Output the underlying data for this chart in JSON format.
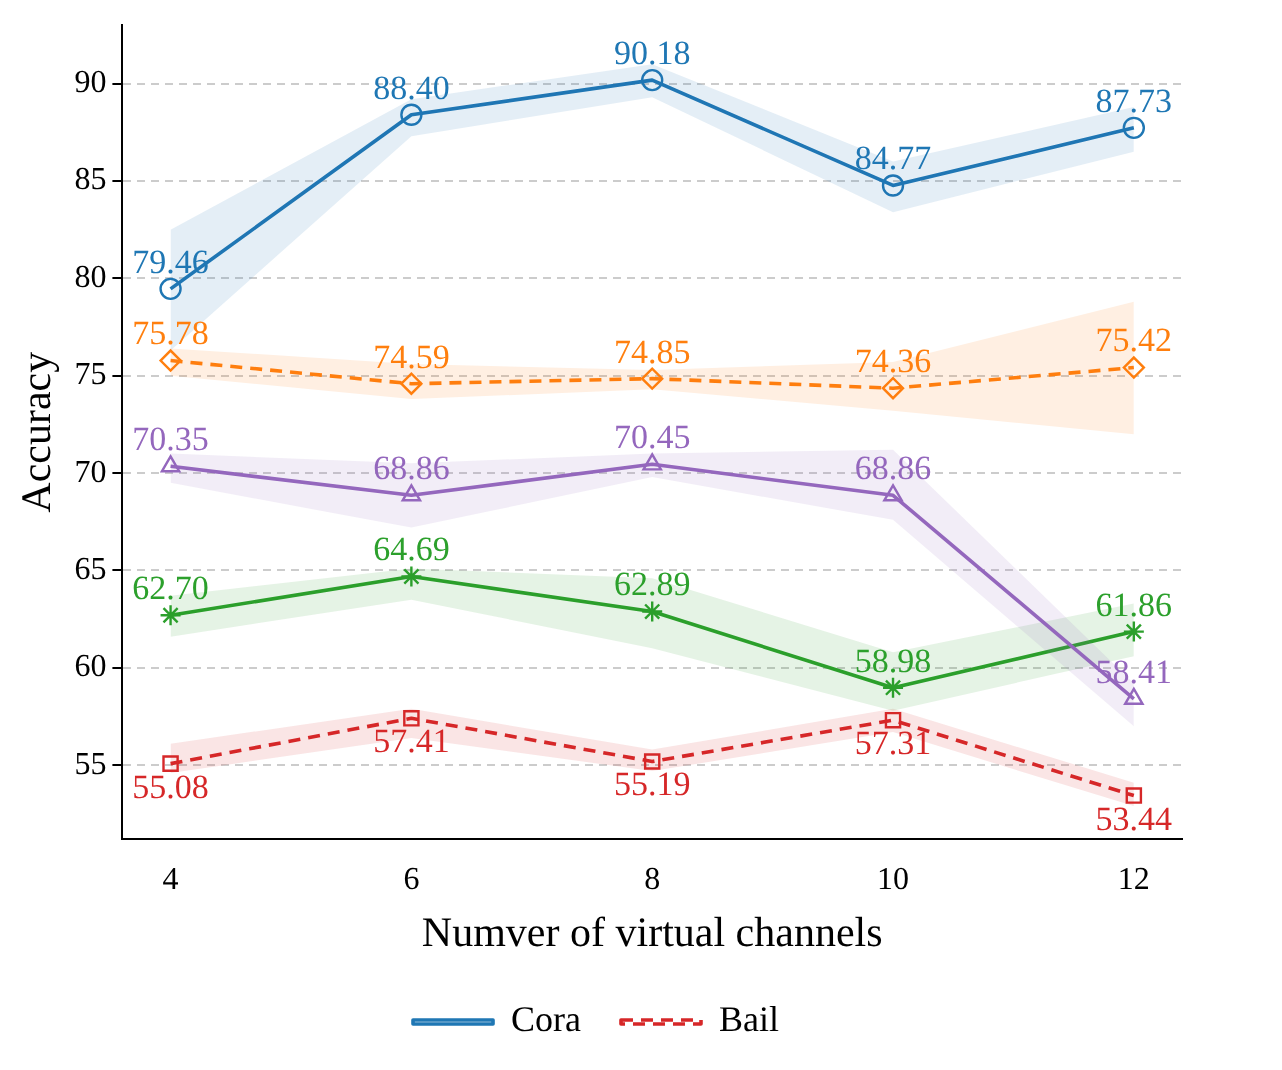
{
  "chart_data": {
    "type": "line",
    "xlabel": "Numver of virtual channels",
    "ylabel": "Accuracy",
    "x": [
      4,
      6,
      8,
      10,
      12
    ],
    "xlim": [
      3.6,
      12.4
    ],
    "xticks": [
      4,
      6,
      8,
      10,
      12
    ],
    "ylim": [
      51.2,
      93
    ],
    "yticks": [
      55,
      60,
      65,
      70,
      75,
      80,
      85,
      90
    ],
    "grid": "y",
    "legend": "bottom",
    "series": [
      {
        "name": "Cora",
        "color": "#1f77b4",
        "marker": "circle",
        "line_style": "solid",
        "values": [
          79.46,
          88.4,
          90.18,
          84.77,
          87.73
        ],
        "value_labels": [
          "79.46",
          "88.40",
          "90.18",
          "84.77",
          "87.73"
        ],
        "lower": [
          76.3,
          87.3,
          89.3,
          83.4,
          86.5
        ],
        "upper": [
          82.5,
          89.2,
          91.0,
          86.0,
          88.8
        ]
      },
      {
        "color": "#9467bd",
        "marker": "triangle",
        "line_style": "solid",
        "values": [
          70.35,
          68.86,
          70.45,
          68.86,
          58.41
        ],
        "value_labels": [
          "70.35",
          "68.86",
          "70.45",
          "68.86",
          "58.41"
        ],
        "lower": [
          69.5,
          67.2,
          69.8,
          67.6,
          57.0
        ],
        "upper": [
          71.0,
          70.5,
          71.0,
          71.2,
          59.2
        ]
      },
      {
        "color": "#ff7f0e",
        "marker": "diamond",
        "line_style": "dashed",
        "values": [
          75.78,
          74.59,
          74.85,
          74.36,
          75.42
        ],
        "value_labels": [
          "75.78",
          "74.59",
          "74.85",
          "74.36",
          "75.42"
        ],
        "lower": [
          75.0,
          73.8,
          74.3,
          73.2,
          72.0
        ],
        "upper": [
          76.4,
          75.6,
          75.3,
          75.7,
          78.8
        ]
      },
      {
        "color": "#2ca02c",
        "marker": "cross",
        "line_style": "solid",
        "values": [
          62.7,
          64.69,
          62.89,
          58.98,
          61.86
        ],
        "value_labels": [
          "62.70",
          "64.69",
          "62.89",
          "58.98",
          "61.86"
        ],
        "lower": [
          61.6,
          63.5,
          61.0,
          57.8,
          60.6
        ],
        "upper": [
          63.7,
          65.1,
          64.6,
          60.8,
          63.3
        ]
      },
      {
        "name": "Bail",
        "color": "#d62728",
        "marker": "square",
        "line_style": "dashed",
        "values": [
          55.08,
          57.41,
          55.19,
          57.31,
          53.44
        ],
        "value_labels": [
          "55.08",
          "57.41",
          "55.19",
          "57.31",
          "53.44"
        ],
        "lower": [
          54.6,
          56.4,
          54.7,
          56.7,
          52.9
        ],
        "upper": [
          56.1,
          57.9,
          55.8,
          57.9,
          54.1
        ]
      }
    ]
  }
}
